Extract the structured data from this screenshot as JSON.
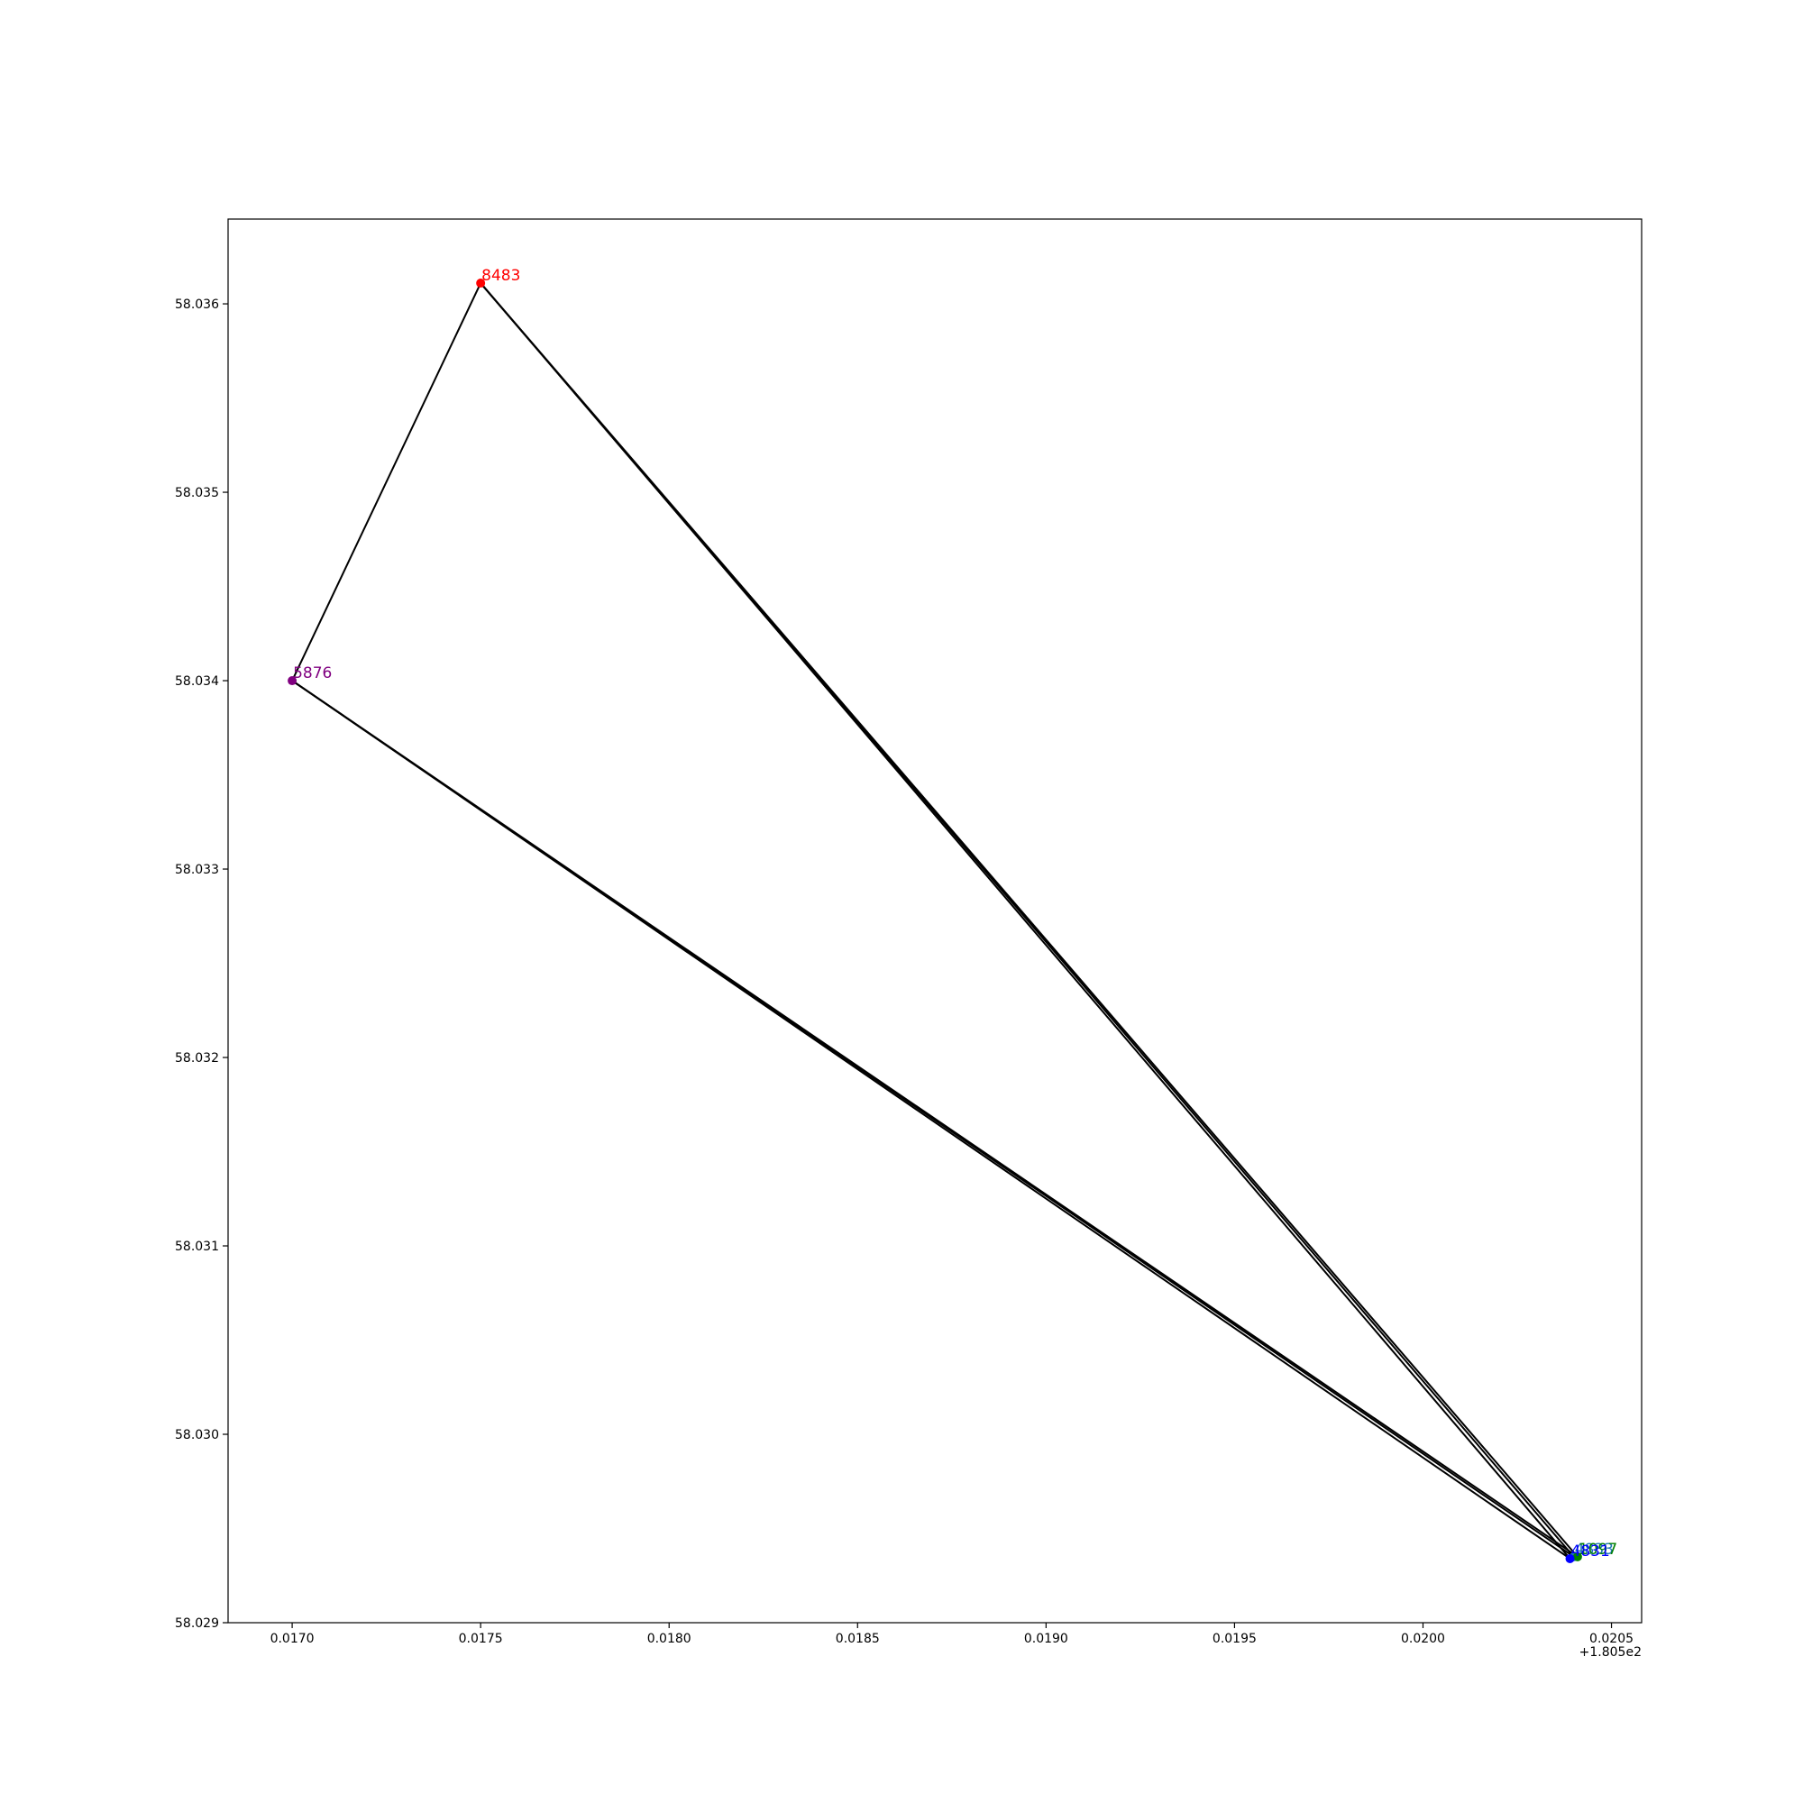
{
  "chart_data": {
    "type": "scatter",
    "title": "",
    "xlabel": "",
    "ylabel": "",
    "x_offset_label": "+1.805e2",
    "x_offset": 180.5,
    "xlim": [
      0.01683,
      0.02058
    ],
    "ylim": [
      58.029,
      58.03645
    ],
    "grid": false,
    "legend": "none",
    "x_ticks": [
      {
        "value": 0.017,
        "label": "0.0170"
      },
      {
        "value": 0.0175,
        "label": "0.0175"
      },
      {
        "value": 0.018,
        "label": "0.0180"
      },
      {
        "value": 0.0185,
        "label": "0.0185"
      },
      {
        "value": 0.019,
        "label": "0.0190"
      },
      {
        "value": 0.0195,
        "label": "0.0195"
      },
      {
        "value": 0.02,
        "label": "0.0200"
      },
      {
        "value": 0.0205,
        "label": "0.0205"
      }
    ],
    "y_ticks": [
      {
        "value": 58.029,
        "label": "58.029"
      },
      {
        "value": 58.03,
        "label": "58.030"
      },
      {
        "value": 58.031,
        "label": "58.031"
      },
      {
        "value": 58.032,
        "label": "58.032"
      },
      {
        "value": 58.033,
        "label": "58.033"
      },
      {
        "value": 58.034,
        "label": "58.034"
      },
      {
        "value": 58.035,
        "label": "58.035"
      },
      {
        "value": 58.036,
        "label": "58.036"
      }
    ],
    "points": [
      {
        "id": "8483",
        "label": "8483",
        "x": 0.0175,
        "y": 58.03611,
        "color": "#ff0000"
      },
      {
        "id": "5876",
        "label": "5876",
        "x": 0.017,
        "y": 58.034,
        "color": "#800080"
      },
      {
        "id": "4833",
        "label": "4833",
        "x": 0.0204,
        "y": 58.02935,
        "color": "#1f77b4"
      },
      {
        "id": "1097",
        "label": "1097",
        "x": 0.02041,
        "y": 58.02935,
        "color": "#008000"
      },
      {
        "id": "4831",
        "label": "4831",
        "x": 0.02039,
        "y": 58.02934,
        "color": "#0000ff"
      }
    ],
    "edges": [
      {
        "from": "8483",
        "to": "5876"
      },
      {
        "from": "8483",
        "to": "4833"
      },
      {
        "from": "8483",
        "to": "1097"
      },
      {
        "from": "8483",
        "to": "4831"
      },
      {
        "from": "5876",
        "to": "4833"
      },
      {
        "from": "5876",
        "to": "1097"
      },
      {
        "from": "5876",
        "to": "4831"
      }
    ],
    "edge_color": "#000000"
  }
}
